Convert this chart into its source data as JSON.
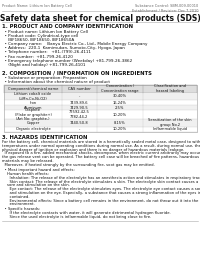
{
  "title": "Safety data sheet for chemical products (SDS)",
  "header_left": "Product Name: Lithium Ion Battery Cell",
  "header_right": "Substance Control: SBM-009-00010\nEstablishment / Revision: Dec.7,2010",
  "section1_title": "1. PRODUCT AND COMPANY IDENTIFICATION",
  "section1_lines": [
    "  • Product name: Lithium Ion Battery Cell",
    "  • Product code: Cylindrical-type cell",
    "     IBF18650, IBF18650, IBF18650A",
    "  • Company name:    Banyu Electric Co., Ltd., Mobile Energy Company",
    "  • Address:  220-1  Kamimukan, Sumoto-City, Hyogo, Japan",
    "  • Telephone number:   +81-(799)-26-4111",
    "  • Fax number:  +81-799-26-4120",
    "  • Emergency telephone number (Weekday) +81-799-26-3862",
    "     (Night and holiday) +81-799-26-4101"
  ],
  "section2_title": "2. COMPOSITION / INFORMATION ON INGREDIENTS",
  "section2_intro": "  • Substance or preparation: Preparation",
  "section2_sub": "  • Information about the chemical nature of product",
  "table_headers": [
    "Component/chemical name",
    "CAS number",
    "Concentration /\nConcentration range",
    "Classification and\nhazard labeling"
  ],
  "table_subheader": "Several name",
  "table_rows": [
    [
      "Lithium cobalt oxide\n(LiMn-Co-Ni-O2)",
      "-",
      "30-40%",
      ""
    ],
    [
      "Iron",
      "7439-89-6",
      "16-24%",
      ""
    ],
    [
      "Aluminum",
      "7429-90-5",
      "2-5%",
      ""
    ],
    [
      "Graphite\n(Flake or graphite+)\n(Art No: graphite-)",
      "77592-42-5\n7782-44-2",
      "10-20%",
      ""
    ],
    [
      "Copper",
      "7440-50-8",
      "8-15%",
      "Sensitization of the skin\ngroup No.2"
    ],
    [
      "Organic electrolyte",
      "-",
      "10-20%",
      "Inflammable liquid"
    ]
  ],
  "section3_title": "3. HAZARDS IDENTIFICATION",
  "section3_para": "For the battery cell, chemical materials are stored in a hermetically sealed metal case, designed to withstand\ntemperatures under normal operating conditions during normal use. As a result, during normal use, there is no\nphysical danger of ignition or explosion and there is no danger of hazardous materials leakage.\n  If exposed to a fire, added mechanical shocks, decompose, when electric current arbitrarily may occur,\nthe gas release vent can be operated. The battery cell case will be breached of fire patterns, hazardous\nmaterials may be released.\n  Moreover, if heated strongly by the surrounding fire, soot gas may be emitted.",
  "section3_bullet1_title": "  • Most important hazard and effects:",
  "section3_bullet1_body": "    Human health effects:\n      Inhalation: The release of the electrolyte has an anesthesia action and stimulates in respiratory tract.\n      Skin contact: The release of the electrolyte stimulates a skin. The electrolyte skin contact causes a\n    sore and stimulation on the skin.\n      Eye contact: The release of the electrolyte stimulates eyes. The electrolyte eye contact causes a sore\n      and stimulation on the eye. Especially, a substance that causes a strong inflammation of the eyes is\n      contained.\n      Environmental effects: Since a battery cell remains in the environment, do not throw out it into the\n      environment.",
  "section3_bullet2_title": "  • Specific hazards:",
  "section3_bullet2_body": "      If the electrolyte contacts with water, it will generate detrimental hydrogen fluoride.\n      Since the used electrolyte is inflammable liquid, do not bring close to fire.",
  "bg_color": "#ffffff",
  "text_color": "#111111",
  "gray_text": "#666666",
  "line_color": "#aaaaaa",
  "title_fontsize": 5.5,
  "header_fontsize": 2.5,
  "section_fontsize": 3.8,
  "body_fontsize": 3.0,
  "table_fontsize": 2.6
}
